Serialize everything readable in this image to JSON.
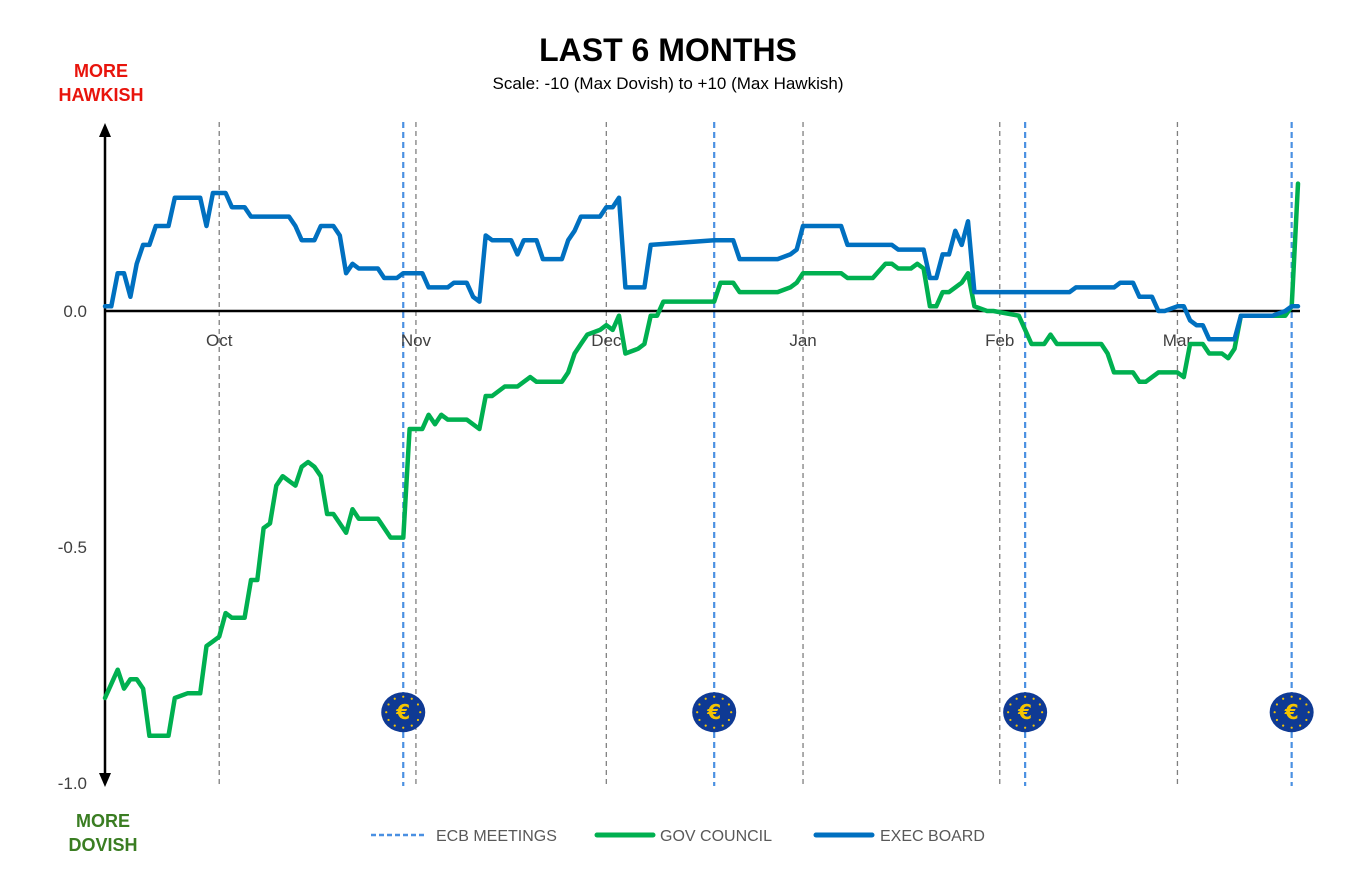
{
  "chart_data": {
    "type": "line",
    "title": "LAST 6 MONTHS",
    "subtitle": "Scale: -10 (Max Dovish)  to +10 (Max Hawkish)",
    "top_label": [
      "MORE",
      "HAWKISH"
    ],
    "bottom_label": [
      "MORE",
      "DOVISH"
    ],
    "xlabel": "",
    "ylabel": "",
    "x_ticks": [
      {
        "label": "Oct",
        "date": "10-01"
      },
      {
        "label": "Nov",
        "date": "11-01"
      },
      {
        "label": "Dec",
        "date": "12-01"
      },
      {
        "label": "Jan",
        "date": "01-01"
      },
      {
        "label": "Feb",
        "date": "02-01"
      },
      {
        "label": "Mar",
        "date": "03-01"
      }
    ],
    "xlim": [
      "09-13",
      "03-20"
    ],
    "y_ticks": [
      {
        "label": "0.0",
        "value": 0
      },
      {
        "label": "-0.5",
        "value": -0.5
      },
      {
        "label": "-1.0",
        "value": -1.0
      }
    ],
    "ylim": [
      -1.0,
      0.4
    ],
    "grid": "vertical dashed at month starts",
    "legend_position": "bottom",
    "ecb_meetings": {
      "name": "ECB MEETINGS",
      "color": "#4a90e2",
      "dates": [
        "10-30",
        "12-18",
        "02-05",
        "03-19"
      ],
      "icon": "euro-coin-icon"
    },
    "series": [
      {
        "name": "GOV COUNCIL",
        "color": "#00b050",
        "points": [
          [
            "09-13",
            -0.82
          ],
          [
            "09-14",
            -0.79
          ],
          [
            "09-15",
            -0.76
          ],
          [
            "09-16",
            -0.8
          ],
          [
            "09-17",
            -0.78
          ],
          [
            "09-18",
            -0.78
          ],
          [
            "09-19",
            -0.8
          ],
          [
            "09-20",
            -0.9
          ],
          [
            "09-23",
            -0.9
          ],
          [
            "09-24",
            -0.82
          ],
          [
            "09-26",
            -0.81
          ],
          [
            "09-28",
            -0.81
          ],
          [
            "09-29",
            -0.71
          ],
          [
            "09-30",
            -0.7
          ],
          [
            "10-01",
            -0.69
          ],
          [
            "10-02",
            -0.64
          ],
          [
            "10-03",
            -0.65
          ],
          [
            "10-05",
            -0.65
          ],
          [
            "10-06",
            -0.57
          ],
          [
            "10-07",
            -0.57
          ],
          [
            "10-08",
            -0.46
          ],
          [
            "10-09",
            -0.45
          ],
          [
            "10-10",
            -0.37
          ],
          [
            "10-11",
            -0.35
          ],
          [
            "10-12",
            -0.36
          ],
          [
            "10-13",
            -0.37
          ],
          [
            "10-14",
            -0.33
          ],
          [
            "10-15",
            -0.32
          ],
          [
            "10-16",
            -0.33
          ],
          [
            "10-17",
            -0.35
          ],
          [
            "10-18",
            -0.43
          ],
          [
            "10-19",
            -0.43
          ],
          [
            "10-20",
            -0.45
          ],
          [
            "10-21",
            -0.47
          ],
          [
            "10-22",
            -0.42
          ],
          [
            "10-23",
            -0.44
          ],
          [
            "10-26",
            -0.44
          ],
          [
            "10-28",
            -0.48
          ],
          [
            "10-30",
            -0.48
          ],
          [
            "10-31",
            -0.25
          ],
          [
            "11-02",
            -0.25
          ],
          [
            "11-03",
            -0.22
          ],
          [
            "11-04",
            -0.24
          ],
          [
            "11-05",
            -0.22
          ],
          [
            "11-06",
            -0.23
          ],
          [
            "11-09",
            -0.23
          ],
          [
            "11-11",
            -0.25
          ],
          [
            "11-12",
            -0.18
          ],
          [
            "11-13",
            -0.18
          ],
          [
            "11-15",
            -0.16
          ],
          [
            "11-17",
            -0.16
          ],
          [
            "11-19",
            -0.14
          ],
          [
            "11-20",
            -0.15
          ],
          [
            "11-24",
            -0.15
          ],
          [
            "11-25",
            -0.13
          ],
          [
            "11-26",
            -0.09
          ],
          [
            "11-27",
            -0.07
          ],
          [
            "11-28",
            -0.05
          ],
          [
            "11-30",
            -0.04
          ],
          [
            "12-01",
            -0.03
          ],
          [
            "12-02",
            -0.04
          ],
          [
            "12-03",
            -0.01
          ],
          [
            "12-04",
            -0.09
          ],
          [
            "12-06",
            -0.08
          ],
          [
            "12-07",
            -0.07
          ],
          [
            "12-08",
            -0.01
          ],
          [
            "12-09",
            -0.01
          ],
          [
            "12-10",
            0.02
          ],
          [
            "12-18",
            0.02
          ],
          [
            "12-19",
            0.06
          ],
          [
            "12-21",
            0.06
          ],
          [
            "12-22",
            0.04
          ],
          [
            "12-28",
            0.04
          ],
          [
            "12-30",
            0.05
          ],
          [
            "12-31",
            0.06
          ],
          [
            "01-01",
            0.08
          ],
          [
            "01-07",
            0.08
          ],
          [
            "01-08",
            0.07
          ],
          [
            "01-12",
            0.07
          ],
          [
            "01-14",
            0.1
          ],
          [
            "01-15",
            0.1
          ],
          [
            "01-16",
            0.09
          ],
          [
            "01-18",
            0.09
          ],
          [
            "01-19",
            0.1
          ],
          [
            "01-20",
            0.09
          ],
          [
            "01-21",
            0.01
          ],
          [
            "01-22",
            0.01
          ],
          [
            "01-23",
            0.04
          ],
          [
            "01-24",
            0.04
          ],
          [
            "01-25",
            0.05
          ],
          [
            "01-26",
            0.06
          ],
          [
            "01-27",
            0.08
          ],
          [
            "01-28",
            0.01
          ],
          [
            "01-30",
            0.0
          ],
          [
            "01-31",
            0.0
          ],
          [
            "02-04",
            -0.01
          ],
          [
            "02-06",
            -0.07
          ],
          [
            "02-08",
            -0.07
          ],
          [
            "02-09",
            -0.05
          ],
          [
            "02-10",
            -0.07
          ],
          [
            "02-17",
            -0.07
          ],
          [
            "02-18",
            -0.09
          ],
          [
            "02-19",
            -0.13
          ],
          [
            "02-22",
            -0.13
          ],
          [
            "02-23",
            -0.15
          ],
          [
            "02-24",
            -0.15
          ],
          [
            "02-26",
            -0.13
          ],
          [
            "03-01",
            -0.13
          ],
          [
            "03-02",
            -0.14
          ],
          [
            "03-03",
            -0.07
          ],
          [
            "03-05",
            -0.07
          ],
          [
            "03-06",
            -0.09
          ],
          [
            "03-08",
            -0.09
          ],
          [
            "03-09",
            -0.1
          ],
          [
            "03-10",
            -0.08
          ],
          [
            "03-11",
            -0.01
          ],
          [
            "03-18",
            -0.01
          ],
          [
            "03-19",
            0.01
          ],
          [
            "03-20",
            0.27
          ]
        ]
      },
      {
        "name": "EXEC BOARD",
        "color": "#0070c0",
        "points": [
          [
            "09-13",
            0.01
          ],
          [
            "09-14",
            0.01
          ],
          [
            "09-15",
            0.08
          ],
          [
            "09-16",
            0.08
          ],
          [
            "09-17",
            0.03
          ],
          [
            "09-18",
            0.1
          ],
          [
            "09-19",
            0.14
          ],
          [
            "09-20",
            0.14
          ],
          [
            "09-21",
            0.18
          ],
          [
            "09-23",
            0.18
          ],
          [
            "09-24",
            0.24
          ],
          [
            "09-28",
            0.24
          ],
          [
            "09-29",
            0.18
          ],
          [
            "09-30",
            0.25
          ],
          [
            "10-02",
            0.25
          ],
          [
            "10-03",
            0.22
          ],
          [
            "10-05",
            0.22
          ],
          [
            "10-06",
            0.2
          ],
          [
            "10-12",
            0.2
          ],
          [
            "10-13",
            0.18
          ],
          [
            "10-14",
            0.15
          ],
          [
            "10-16",
            0.15
          ],
          [
            "10-17",
            0.18
          ],
          [
            "10-19",
            0.18
          ],
          [
            "10-20",
            0.16
          ],
          [
            "10-21",
            0.08
          ],
          [
            "10-22",
            0.1
          ],
          [
            "10-23",
            0.09
          ],
          [
            "10-26",
            0.09
          ],
          [
            "10-27",
            0.07
          ],
          [
            "10-29",
            0.07
          ],
          [
            "10-30",
            0.08
          ],
          [
            "11-02",
            0.08
          ],
          [
            "11-03",
            0.05
          ],
          [
            "11-06",
            0.05
          ],
          [
            "11-07",
            0.06
          ],
          [
            "11-09",
            0.06
          ],
          [
            "11-10",
            0.03
          ],
          [
            "11-11",
            0.02
          ],
          [
            "11-12",
            0.16
          ],
          [
            "11-13",
            0.15
          ],
          [
            "11-16",
            0.15
          ],
          [
            "11-17",
            0.12
          ],
          [
            "11-18",
            0.15
          ],
          [
            "11-20",
            0.15
          ],
          [
            "11-21",
            0.11
          ],
          [
            "11-24",
            0.11
          ],
          [
            "11-25",
            0.15
          ],
          [
            "11-26",
            0.17
          ],
          [
            "11-27",
            0.2
          ],
          [
            "11-30",
            0.2
          ],
          [
            "12-01",
            0.22
          ],
          [
            "12-02",
            0.22
          ],
          [
            "12-03",
            0.24
          ],
          [
            "12-04",
            0.05
          ],
          [
            "12-07",
            0.05
          ],
          [
            "12-08",
            0.14
          ],
          [
            "12-18",
            0.15
          ],
          [
            "12-21",
            0.15
          ],
          [
            "12-22",
            0.11
          ],
          [
            "12-28",
            0.11
          ],
          [
            "12-30",
            0.12
          ],
          [
            "12-31",
            0.13
          ],
          [
            "01-01",
            0.18
          ],
          [
            "01-07",
            0.18
          ],
          [
            "01-08",
            0.14
          ],
          [
            "01-15",
            0.14
          ],
          [
            "01-16",
            0.13
          ],
          [
            "01-20",
            0.13
          ],
          [
            "01-21",
            0.07
          ],
          [
            "01-22",
            0.07
          ],
          [
            "01-23",
            0.12
          ],
          [
            "01-24",
            0.12
          ],
          [
            "01-25",
            0.17
          ],
          [
            "01-26",
            0.14
          ],
          [
            "01-27",
            0.19
          ],
          [
            "01-28",
            0.04
          ],
          [
            "02-12",
            0.04
          ],
          [
            "02-13",
            0.05
          ],
          [
            "02-19",
            0.05
          ],
          [
            "02-20",
            0.06
          ],
          [
            "02-22",
            0.06
          ],
          [
            "02-23",
            0.03
          ],
          [
            "02-25",
            0.03
          ],
          [
            "02-26",
            0.0
          ],
          [
            "02-27",
            0.0
          ],
          [
            "03-01",
            0.01
          ],
          [
            "03-02",
            0.01
          ],
          [
            "03-03",
            -0.02
          ],
          [
            "03-04",
            -0.03
          ],
          [
            "03-05",
            -0.03
          ],
          [
            "03-06",
            -0.06
          ],
          [
            "03-10",
            -0.06
          ],
          [
            "03-11",
            -0.01
          ],
          [
            "03-16",
            -0.01
          ],
          [
            "03-18",
            0.0
          ],
          [
            "03-19",
            0.01
          ],
          [
            "03-20",
            0.01
          ]
        ]
      }
    ]
  }
}
